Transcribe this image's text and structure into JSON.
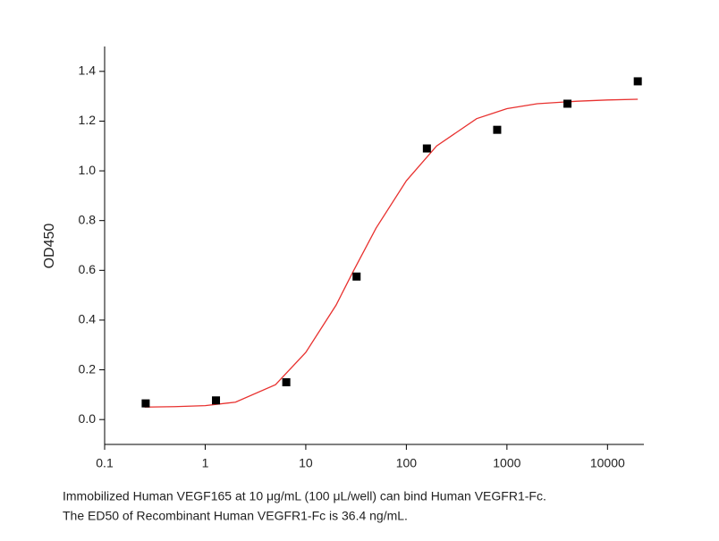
{
  "chart_data": {
    "type": "scatter",
    "y_label": "OD450",
    "x_scale": "log",
    "xlim": [
      0.1,
      23000
    ],
    "ylim": [
      -0.1,
      1.5
    ],
    "xticks": [
      0.1,
      1,
      10,
      100,
      1000,
      10000
    ],
    "yticks": [
      {
        "value": 0,
        "label": "0.0"
      },
      0.2,
      0.4,
      0.6,
      0.8,
      {
        "value": 1,
        "label": "1.0"
      },
      1.2,
      1.4
    ],
    "points": {
      "color": "#000000",
      "x": [
        0.256,
        1.28,
        6.4,
        32,
        160,
        800,
        4000,
        20000
      ],
      "y": [
        0.065,
        0.077,
        0.15,
        0.575,
        1.09,
        1.165,
        1.27,
        1.36
      ]
    },
    "fit": {
      "color": "#e8312f",
      "x": [
        0.25,
        0.5,
        1,
        2,
        5,
        10,
        20,
        30,
        50,
        100,
        200,
        500,
        1000,
        2000,
        5000,
        10000,
        20000
      ],
      "y": [
        0.05,
        0.052,
        0.056,
        0.07,
        0.14,
        0.27,
        0.46,
        0.6,
        0.77,
        0.96,
        1.1,
        1.21,
        1.25,
        1.27,
        1.28,
        1.285,
        1.288
      ]
    },
    "caption": [
      "Immobilized Human VEGF165 at 10 μg/mL (100 μL/well) can bind Human VEGFR1-Fc.",
      "The ED50 of Recombinant Human VEGFR1-Fc is 36.4 ng/mL."
    ]
  }
}
